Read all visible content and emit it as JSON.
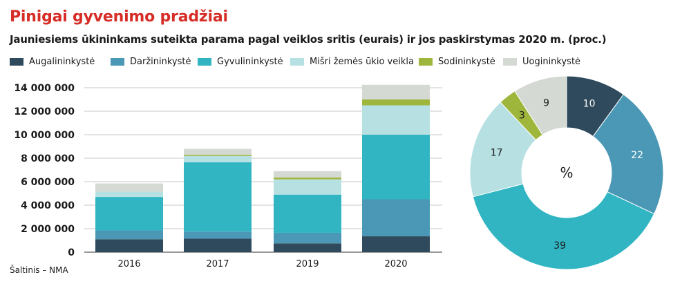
{
  "title": "Pinigai gyvenimo pradžiai",
  "subtitle": "Jauniesiems ūkininkams suteikta parama pagal veiklos sritis (eurais) ir jos paskirstymas 2020 m. (proc.)",
  "source": "Šaltinis – NMA",
  "legend": [
    {
      "label": "Augalininkystė",
      "color": "#2f4a5c"
    },
    {
      "label": "Daržininkystė",
      "color": "#4a98b5"
    },
    {
      "label": "Gyvulininkystė",
      "color": "#31b5c3"
    },
    {
      "label": "Mišri žemės ūkio veikla",
      "color": "#b7e0e3"
    },
    {
      "label": "Sodininkystė",
      "color": "#9fb63c"
    },
    {
      "label": "Uogininkystė",
      "color": "#d5d9d3"
    }
  ],
  "chart_data": [
    {
      "type": "bar",
      "stacked": true,
      "categories": [
        "2016",
        "2017",
        "2019",
        "2020"
      ],
      "ylim": [
        0,
        14000000
      ],
      "yticks": [
        "0",
        "2 000 000",
        "4 000 000",
        "6 000 000",
        "8 000 000",
        "10 000 000",
        "12 000 000",
        "14 000 000"
      ],
      "series": [
        {
          "name": "Augalininkystė",
          "color": "#2f4a5c",
          "values": [
            1100000,
            1150000,
            750000,
            1350000
          ]
        },
        {
          "name": "Daržininkystė",
          "color": "#4a98b5",
          "values": [
            750000,
            600000,
            900000,
            3150000
          ]
        },
        {
          "name": "Gyvulininkystė",
          "color": "#31b5c3",
          "values": [
            2850000,
            5900000,
            3250000,
            5500000
          ]
        },
        {
          "name": "Mišri žemės ūkio veikla",
          "color": "#b7e0e3",
          "values": [
            450000,
            550000,
            1300000,
            2500000
          ]
        },
        {
          "name": "Sodininkystė",
          "color": "#9fb63c",
          "values": [
            0,
            100000,
            150000,
            500000
          ]
        },
        {
          "name": "Uogininkystė",
          "color": "#d5d9d3",
          "values": [
            700000,
            500000,
            550000,
            1250000
          ]
        }
      ]
    },
    {
      "type": "pie",
      "center_label": "%",
      "labels": [
        "Augalininkystė",
        "Daržininkystė",
        "Gyvulininkystė",
        "Mišri žemės ūkio veikla",
        "Sodininkystė",
        "Uogininkystė"
      ],
      "values": [
        10,
        22,
        39,
        17,
        3,
        9
      ],
      "colors": [
        "#2f4a5c",
        "#4a98b5",
        "#31b5c3",
        "#b7e0e3",
        "#9fb63c",
        "#d5d9d3"
      ],
      "label_colors": [
        "#ffffff",
        "#ffffff",
        "#1a1a1a",
        "#1a1a1a",
        "#1a1a1a",
        "#1a1a1a"
      ]
    }
  ]
}
